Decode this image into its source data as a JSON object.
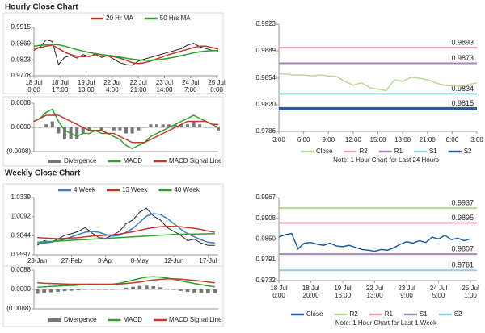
{
  "headers": [
    "Hourly Close Chart",
    "Weekly Close Chart"
  ],
  "chart_data": [
    {
      "type": "line",
      "x": [
        0,
        4,
        8,
        12,
        16,
        20,
        24,
        28,
        32,
        36,
        40,
        44,
        48,
        52,
        56,
        60,
        64,
        68,
        72,
        76,
        80,
        84,
        88,
        92,
        96,
        100,
        104,
        108,
        112,
        116,
        120
      ],
      "xlim": [
        0,
        120
      ],
      "xticks": [
        {
          "value": 0,
          "label": [
            "18 Jul",
            "0:00"
          ]
        },
        {
          "value": 17,
          "label": [
            "18 Jul",
            "17:00"
          ]
        },
        {
          "value": 34,
          "label": [
            "19 Jul",
            "10:00"
          ]
        },
        {
          "value": 51,
          "label": [
            "22 Jul",
            "4:00"
          ]
        },
        {
          "value": 68,
          "label": [
            "22 Jul",
            "21:00"
          ]
        },
        {
          "value": 85,
          "label": [
            "23 Jul",
            "14:00"
          ]
        },
        {
          "value": 102,
          "label": [
            "24 Jul",
            "7:00"
          ]
        },
        {
          "value": 119,
          "label": [
            "25 Jul",
            "0:00"
          ]
        }
      ],
      "ylim": [
        0.9778,
        0.9915
      ],
      "yticks": [
        0.9915,
        0.9869,
        0.9823,
        0.9778
      ],
      "series": [
        {
          "color": "#222222",
          "values": [
            0.985,
            0.986,
            0.988,
            0.9875,
            0.981,
            0.983,
            0.9835,
            0.9828,
            0.9838,
            0.9832,
            0.984,
            0.983,
            0.9835,
            0.9825,
            0.9815,
            0.981,
            0.9808,
            0.982,
            0.9825,
            0.983,
            0.9835,
            0.984,
            0.9845,
            0.985,
            0.9855,
            0.9865,
            0.987,
            0.986,
            0.9855,
            0.985,
            0.9848
          ]
        },
        {
          "name": "20 Hr MA",
          "color": "#c0392b",
          "values": [
            0.9855,
            0.9858,
            0.9862,
            0.9865,
            0.9855,
            0.9845,
            0.9838,
            0.9833,
            0.9832,
            0.9834,
            0.9835,
            0.9834,
            0.9834,
            0.9832,
            0.9828,
            0.9822,
            0.9815,
            0.9813,
            0.9815,
            0.982,
            0.9826,
            0.9832,
            0.9838,
            0.9843,
            0.9848,
            0.9853,
            0.9858,
            0.9862,
            0.9862,
            0.9858,
            0.9854
          ]
        },
        {
          "name": "50 Hrs MA",
          "color": "#2ca02c",
          "values": [
            0.9862,
            0.9864,
            0.9866,
            0.9867,
            0.9866,
            0.9862,
            0.9857,
            0.9852,
            0.9848,
            0.9844,
            0.9841,
            0.9838,
            0.9836,
            0.9834,
            0.9831,
            0.9828,
            0.9825,
            0.9823,
            0.9822,
            0.9822,
            0.9823,
            0.9825,
            0.9828,
            0.9831,
            0.9835,
            0.9839,
            0.9843,
            0.9846,
            0.9848,
            0.9849,
            0.985
          ]
        }
      ]
    },
    {
      "type": "line",
      "x": [
        0,
        4,
        8,
        12,
        16,
        20,
        24,
        28,
        32,
        36,
        40,
        44,
        48,
        52,
        56,
        60,
        64,
        68,
        72,
        76,
        80,
        84,
        88,
        92,
        96,
        100,
        104,
        108,
        112,
        116,
        120
      ],
      "xlim": [
        0,
        120
      ],
      "ylim": [
        -0.0008,
        0.0008
      ],
      "yticks": [
        0.0008,
        {
          "value": 0,
          "label": "0.0000"
        },
        {
          "value": -0.0008,
          "label": "(0.0008)"
        }
      ],
      "series": [
        {
          "name": "Divergence",
          "style": "bar",
          "color": "#777777",
          "values": [
            0,
            0,
            0.0001,
            0.0002,
            -0.0002,
            -0.0004,
            -0.0004,
            -0.0004,
            -0.0002,
            -0.0001,
            0,
            -0.0001,
            0,
            -0.0001,
            -0.0001,
            -0.0002,
            -0.0002,
            -0.0001,
            0,
            0.0001,
            0.0001,
            0.0001,
            0.0001,
            0.0001,
            0.0001,
            0.0001,
            0.0002,
            0.0001,
            0,
            0,
            -0.0001
          ]
        },
        {
          "name": "MACD",
          "color": "#33a02c",
          "values": [
            0.0002,
            0.0003,
            0.0005,
            0.0006,
            0.0002,
            -0.0001,
            -0.0002,
            -0.0003,
            -0.0002,
            -0.0002,
            -0.0001,
            -0.0002,
            -0.0002,
            -0.0003,
            -0.0004,
            -0.0006,
            -0.0007,
            -0.0006,
            -0.0005,
            -0.0003,
            -0.0002,
            -0.0001,
            0,
            0.0001,
            0.0002,
            0.0003,
            0.0004,
            0.0003,
            0.0002,
            0.0001,
            0
          ]
        },
        {
          "name": "MACD Signal Line",
          "color": "#c0392b",
          "values": [
            0.0002,
            0.0003,
            0.0004,
            0.0004,
            0.0004,
            0.0003,
            0.0002,
            0.0001,
            0,
            -0.0001,
            -0.0001,
            -0.0001,
            -0.0002,
            -0.0002,
            -0.0003,
            -0.0004,
            -0.0005,
            -0.0005,
            -0.0005,
            -0.0004,
            -0.0003,
            -0.0002,
            -0.0001,
            0,
            0.0001,
            0.0002,
            0.0002,
            0.0002,
            0.0002,
            0.0001,
            0.0001
          ]
        }
      ]
    },
    {
      "type": "line",
      "x": [
        0,
        1,
        2,
        3,
        4,
        5,
        6,
        7,
        8,
        9,
        10,
        11,
        12,
        13,
        14,
        15,
        16,
        17,
        18,
        19,
        20,
        21,
        22,
        23,
        24
      ],
      "xlim": [
        0,
        24
      ],
      "xticks": [
        {
          "value": 0,
          "label": "3:00"
        },
        {
          "value": 3,
          "label": "6:00"
        },
        {
          "value": 6,
          "label": "9:00"
        },
        {
          "value": 9,
          "label": "12:00"
        },
        {
          "value": 12,
          "label": "15:00"
        },
        {
          "value": 15,
          "label": "18:00"
        },
        {
          "value": 18,
          "label": "21:00"
        },
        {
          "value": 21,
          "label": "0:00"
        },
        {
          "value": 24,
          "label": "3:00"
        }
      ],
      "ylim": [
        0.9786,
        0.9923
      ],
      "yticks": [
        0.9923,
        0.9889,
        0.9854,
        {
          "value": 0.982,
          "label": "0.9820"
        },
        0.9786
      ],
      "series": [
        {
          "name": "Close",
          "color": "#b8d89a",
          "values": [
            0.986,
            0.9859,
            0.9858,
            0.9858,
            0.9857,
            0.9858,
            0.9857,
            0.9856,
            0.985,
            0.9845,
            0.9848,
            0.9842,
            0.984,
            0.9838,
            0.9852,
            0.985,
            0.9855,
            0.9854,
            0.9852,
            0.9848,
            0.9845,
            0.9844,
            0.9844,
            0.9846,
            0.9848
          ]
        }
      ],
      "levels": [
        {
          "name": "R2",
          "color": "#e8a0a8",
          "value": 0.9893
        },
        {
          "name": "R1",
          "color": "#a485b8",
          "value": 0.9873
        },
        {
          "name": "S1",
          "color": "#8ed0e0",
          "value": 0.9834
        },
        {
          "name": "S2",
          "color": "#2a5a9a",
          "value": 0.9815,
          "line_width": 4
        }
      ],
      "note": "Note: 1 Hour Chart for Last 24 Hours"
    },
    {
      "type": "line",
      "categories": [
        "23-Jan",
        null,
        null,
        null,
        null,
        "27-Feb",
        null,
        null,
        null,
        null,
        "3-Apr",
        null,
        null,
        null,
        null,
        "8-May",
        null,
        null,
        null,
        null,
        "12-Jun",
        null,
        null,
        null,
        null,
        "17-Jul",
        null
      ],
      "ylim": [
        0.9597,
        1.0339
      ],
      "yticks": [
        1.0339,
        1.0092,
        0.9844,
        0.9597
      ],
      "series": [
        {
          "color": "#222222",
          "values": [
            0.972,
            0.978,
            0.976,
            0.98,
            0.985,
            0.987,
            0.99,
            0.995,
            0.988,
            0.982,
            0.981,
            0.985,
            0.99,
            1.0,
            1.005,
            1.015,
            1.02,
            1.01,
            1.005,
            0.995,
            0.99,
            0.985,
            0.978,
            0.98,
            0.975,
            0.972,
            0.972
          ]
        },
        {
          "name": "4 Week",
          "color": "#3a7dc9",
          "values": [
            0.974,
            0.975,
            0.976,
            0.978,
            0.98,
            0.983,
            0.986,
            0.989,
            0.99,
            0.989,
            0.986,
            0.984,
            0.985,
            0.989,
            0.994,
            1.002,
            1.01,
            1.013,
            1.012,
            1.007,
            1.0,
            0.993,
            0.987,
            0.983,
            0.979,
            0.976,
            0.975
          ]
        },
        {
          "name": "13 Week",
          "color": "#c0392b",
          "values": [
            0.982,
            0.9815,
            0.981,
            0.9805,
            0.981,
            0.9815,
            0.982,
            0.983,
            0.984,
            0.9845,
            0.985,
            0.9855,
            0.9865,
            0.988,
            0.9895,
            0.9915,
            0.9935,
            0.995,
            0.996,
            0.9965,
            0.9965,
            0.996,
            0.995,
            0.994,
            0.9925,
            0.9905,
            0.989
          ]
        },
        {
          "name": "40 Week",
          "color": "#2ca02c",
          "values": [
            0.976,
            0.9765,
            0.977,
            0.9775,
            0.978,
            0.9785,
            0.979,
            0.9795,
            0.98,
            0.9805,
            0.981,
            0.9815,
            0.982,
            0.9825,
            0.983,
            0.9835,
            0.984,
            0.9845,
            0.985,
            0.9855,
            0.986,
            0.9862,
            0.9864,
            0.9866,
            0.9868,
            0.987,
            0.9871
          ]
        }
      ]
    },
    {
      "type": "line",
      "ylim": [
        -0.0088,
        0.0088
      ],
      "yticks": [
        0.0088,
        {
          "value": 0,
          "label": "0.0000"
        },
        {
          "value": -0.0088,
          "label": "(0.0088)"
        }
      ],
      "series": [
        {
          "name": "Divergence",
          "style": "bar",
          "color": "#777777",
          "values": [
            -0.002,
            -0.0016,
            -0.0013,
            -0.0011,
            -0.0008,
            -0.0006,
            -0.0004,
            -0.0001,
            0,
            -0.0001,
            -0.0002,
            0,
            0.0003,
            0.0008,
            0.0012,
            0.0016,
            0.0017,
            0.0015,
            0.001,
            0.0004,
            -0.0002,
            -0.0007,
            -0.0011,
            -0.0014,
            -0.0016,
            -0.0018,
            -0.0018
          ]
        },
        {
          "name": "MACD",
          "color": "#33a02c",
          "values": [
            0.001,
            0.0012,
            0.0014,
            0.0015,
            0.0017,
            0.0018,
            0.002,
            0.0023,
            0.0024,
            0.0023,
            0.0022,
            0.0024,
            0.0028,
            0.0035,
            0.0042,
            0.005,
            0.0056,
            0.0058,
            0.0056,
            0.0052,
            0.0046,
            0.004,
            0.0033,
            0.0027,
            0.0022,
            0.0016,
            0.0012
          ]
        },
        {
          "name": "MACD Signal Line",
          "color": "#c0392b",
          "values": [
            0.003,
            0.0028,
            0.0027,
            0.0026,
            0.0025,
            0.0024,
            0.0024,
            0.0024,
            0.0024,
            0.0024,
            0.0024,
            0.0024,
            0.0025,
            0.0027,
            0.003,
            0.0034,
            0.0039,
            0.0043,
            0.0046,
            0.0048,
            0.0048,
            0.0047,
            0.0044,
            0.0041,
            0.0038,
            0.0034,
            0.003
          ]
        }
      ]
    },
    {
      "type": "line",
      "x": [
        0,
        4,
        8,
        12,
        16,
        20,
        24,
        28,
        32,
        36,
        40,
        44,
        48,
        52,
        56,
        60,
        64,
        68,
        72,
        76,
        80,
        84,
        88,
        92,
        96,
        100,
        104,
        108,
        112,
        116,
        120
      ],
      "xlim": [
        0,
        124
      ],
      "xticks": [
        {
          "value": 0,
          "label": [
            "18 Jul",
            "0:00"
          ]
        },
        {
          "value": 20,
          "label": [
            "18 Jul",
            "20:00"
          ]
        },
        {
          "value": 40,
          "label": [
            "19 Jul",
            "16:00"
          ]
        },
        {
          "value": 60,
          "label": [
            "22 Jul",
            "13:00"
          ]
        },
        {
          "value": 80,
          "label": [
            "23 Jul",
            "9:00"
          ]
        },
        {
          "value": 100,
          "label": [
            "24 Jul",
            "5:00"
          ]
        },
        {
          "value": 120,
          "label": [
            "25 Jul",
            "1:00"
          ]
        }
      ],
      "ylim": [
        0.9732,
        0.9967
      ],
      "yticks": [
        0.9967,
        0.9908,
        {
          "value": 0.985,
          "label": "0.9850"
        },
        0.9791,
        0.9732
      ],
      "series": [
        {
          "name": "Close",
          "color": "#1f5f9f",
          "values": [
            0.9855,
            0.9862,
            0.9865,
            0.9822,
            0.9838,
            0.984,
            0.9835,
            0.9832,
            0.9838,
            0.983,
            0.9828,
            0.9832,
            0.9826,
            0.982,
            0.9818,
            0.9815,
            0.982,
            0.9818,
            0.9825,
            0.9835,
            0.9842,
            0.9838,
            0.9845,
            0.984,
            0.9855,
            0.985,
            0.986,
            0.9848,
            0.9852,
            0.9845,
            0.985
          ]
        }
      ],
      "levels": [
        {
          "name": "R2",
          "color": "#b8d89a",
          "value": 0.9937
        },
        {
          "name": "R1",
          "color": "#e8a0a8",
          "value": 0.9895
        },
        {
          "name": "S1",
          "color": "#a485b8",
          "value": 0.9807
        },
        {
          "name": "S2",
          "color": "#8ed0e0",
          "value": 0.9761
        }
      ],
      "note": "Note: 1 Hour Chart for Last 1 Week"
    }
  ]
}
